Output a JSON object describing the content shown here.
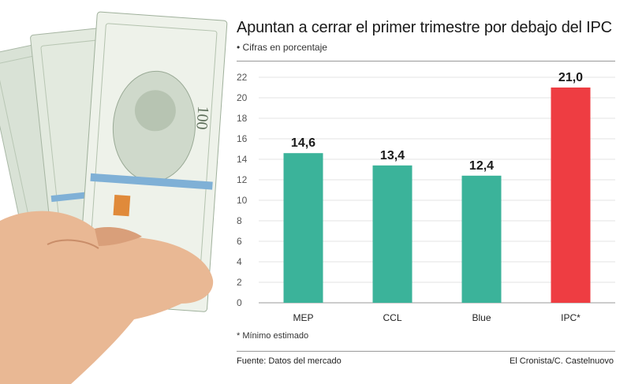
{
  "chart_data": {
    "type": "bar",
    "title": "Apuntan a cerrar el primer trimestre por debajo del IPC",
    "subtitle": "• Cifras en porcentaje",
    "categories": [
      "MEP",
      "CCL",
      "Blue",
      "IPC*"
    ],
    "values": [
      14.6,
      13.4,
      12.4,
      21.0
    ],
    "value_labels": [
      "14,6",
      "13,4",
      "12,4",
      "21,0"
    ],
    "colors": [
      "#3bb39a",
      "#3bb39a",
      "#3bb39a",
      "#ee3d42"
    ],
    "yticks": [
      0,
      2,
      4,
      6,
      8,
      10,
      12,
      14,
      16,
      18,
      20,
      22
    ],
    "ylim": [
      0,
      22
    ],
    "grid": true,
    "xlabel": "",
    "ylabel": "",
    "note": "* Mínimo estimado",
    "source": "Fuente: Datos del mercado",
    "credit": "El Cronista/C. Castelnuovo"
  },
  "photo": {
    "description_icon": "dollar-bills-in-hand-image",
    "bill_text": "100"
  }
}
